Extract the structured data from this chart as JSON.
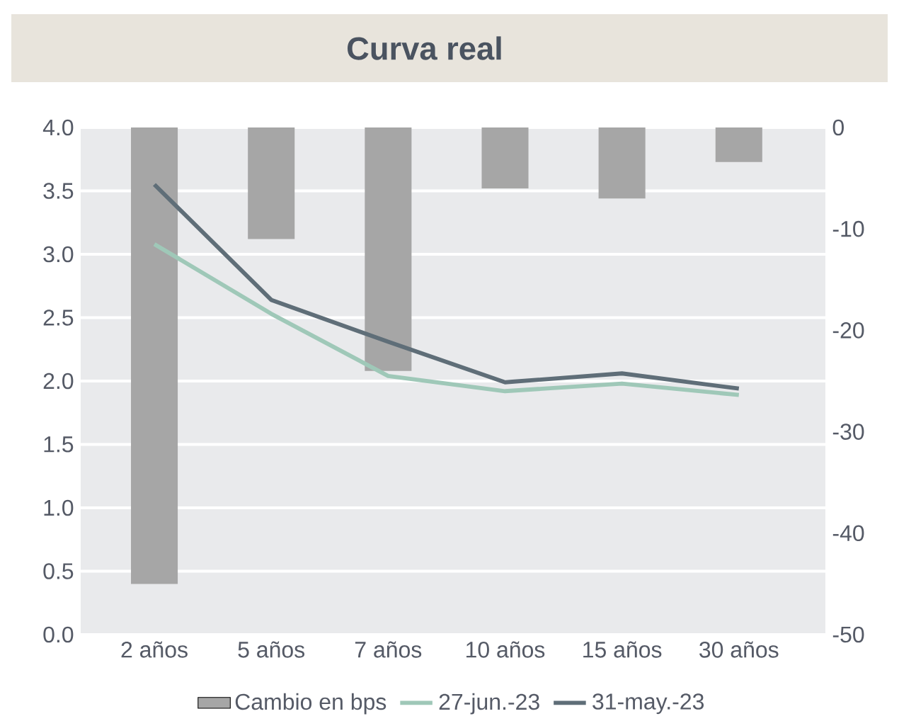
{
  "chart_data": {
    "type": "line",
    "title": "Curva real",
    "categories": [
      "2 años",
      "5 años",
      "7 años",
      "10 años",
      "15 años",
      "30 años"
    ],
    "series": [
      {
        "name": "Cambio en bps",
        "type": "bar",
        "axis": "y2",
        "color": "#a6a6a6",
        "values": [
          -45,
          -11,
          -24,
          -6,
          -7,
          -3.4
        ]
      },
      {
        "name": "27-jun.-23",
        "color": "#9fc8b8",
        "values": [
          3.08,
          2.53,
          2.04,
          1.92,
          1.98,
          1.89
        ]
      },
      {
        "name": "31-may.-23",
        "color": "#5f6e78",
        "values": [
          3.55,
          2.64,
          2.31,
          1.99,
          2.06,
          1.94
        ]
      }
    ],
    "ylim": [
      0,
      4
    ],
    "yticks": [
      {
        "value": 0,
        "label": "0.0"
      },
      0.5,
      {
        "value": 1,
        "label": "1.0"
      },
      1.5,
      {
        "value": 2,
        "label": "2.0"
      },
      2.5,
      {
        "value": 3,
        "label": "3.0"
      },
      3.5,
      {
        "value": 4,
        "label": "4.0"
      }
    ],
    "y2lim": [
      -50,
      0
    ],
    "y2ticks": [
      -50,
      -40,
      -30,
      -20,
      -10,
      0
    ],
    "grid": "y",
    "legend": "bottom",
    "marker": "none",
    "line_style": "solid"
  }
}
